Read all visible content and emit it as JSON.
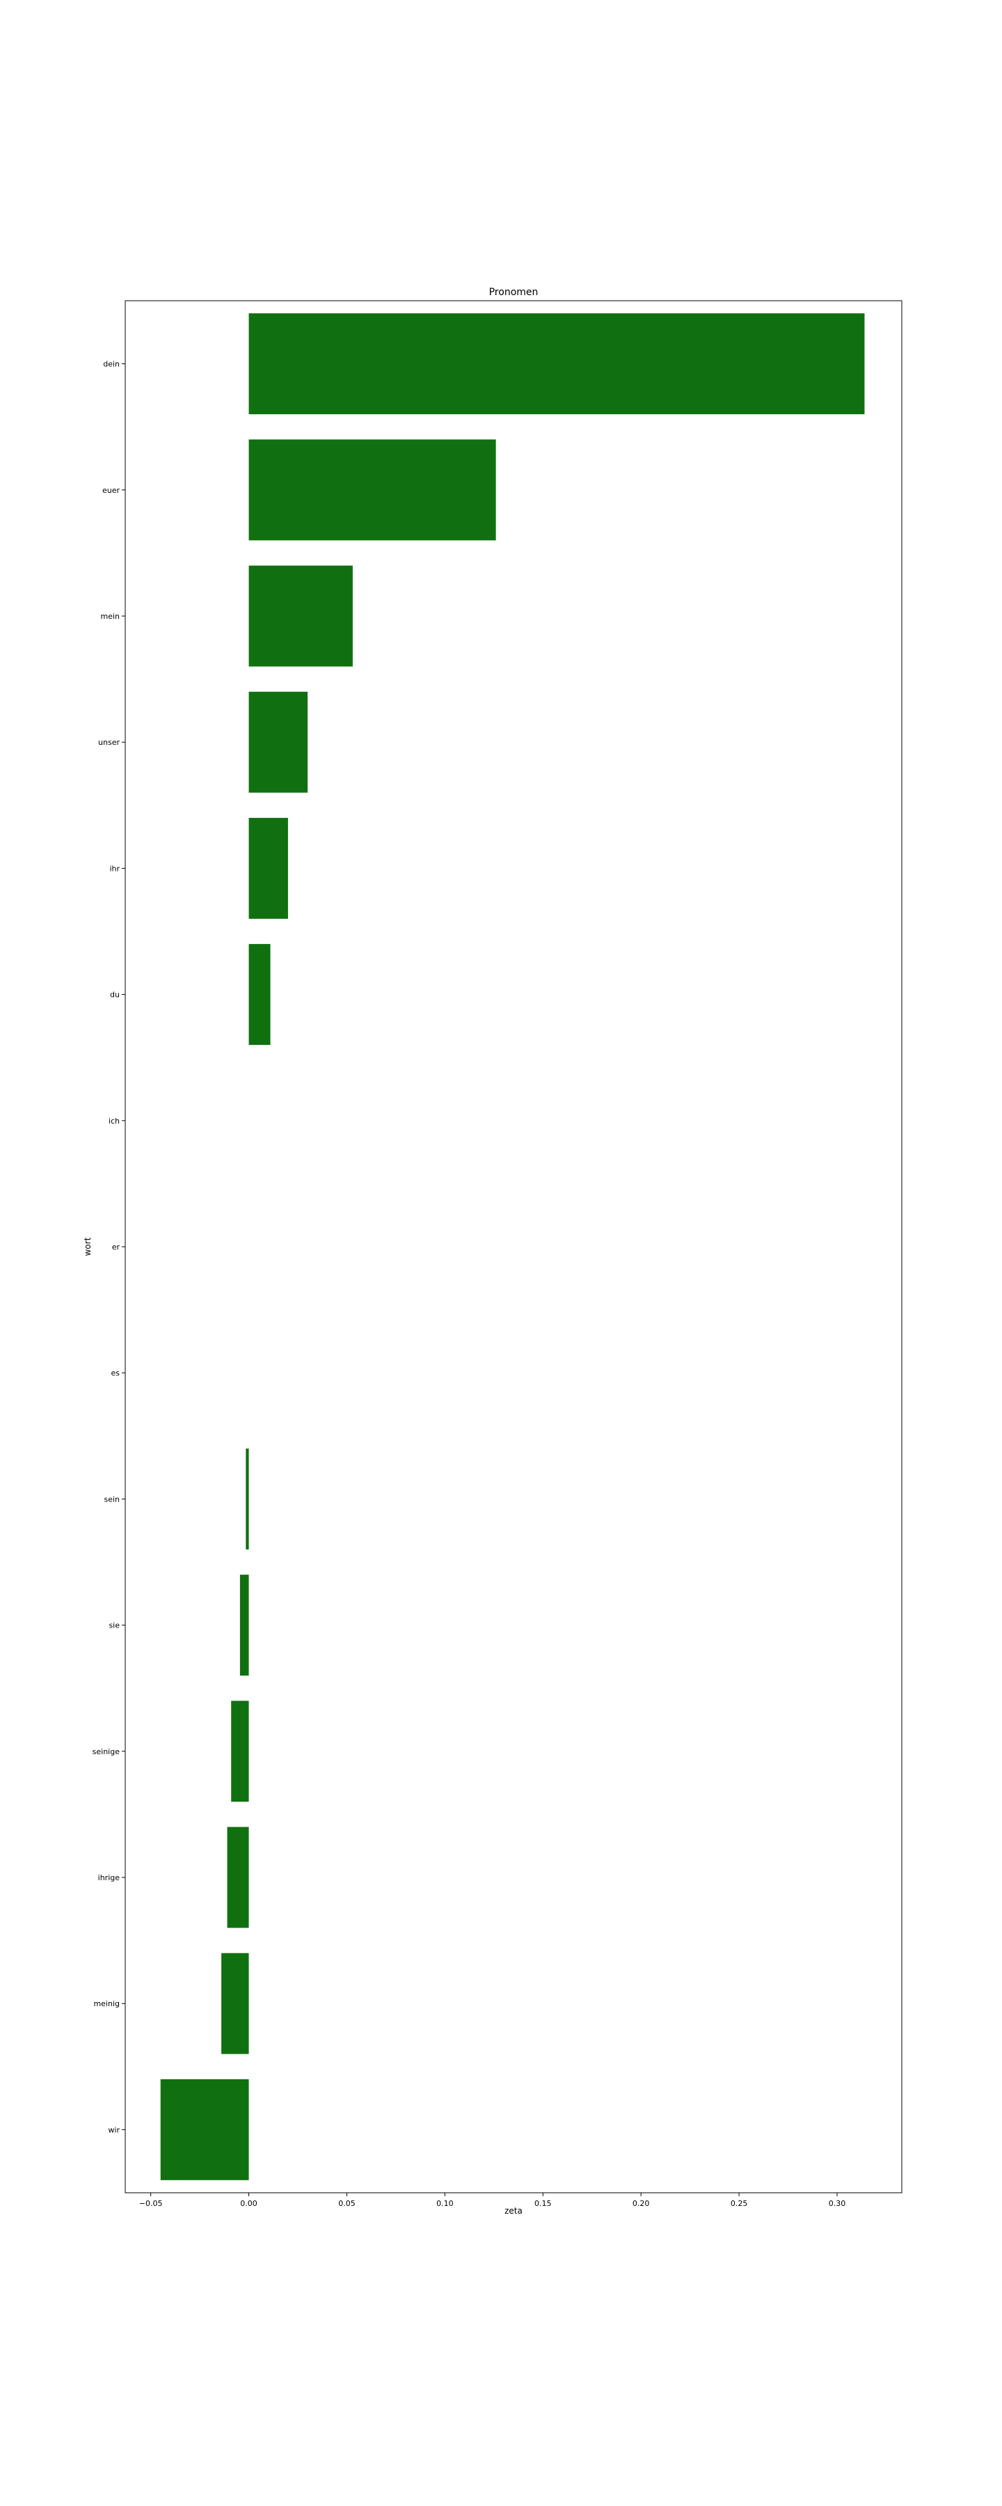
{
  "chart_data": {
    "type": "bar",
    "orientation": "horizontal",
    "title": "Pronomen",
    "xlabel": "zeta",
    "ylabel": "wort",
    "categories": [
      "dein",
      "euer",
      "mein",
      "unser",
      "ihr",
      "du",
      "ich",
      "er",
      "es",
      "sein",
      "sie",
      "seinige",
      "ihrige",
      "meinig",
      "wir"
    ],
    "values": [
      0.314,
      0.126,
      0.053,
      0.03,
      0.02,
      0.011,
      0.0,
      0.0,
      0.0,
      -0.0015,
      -0.0045,
      -0.009,
      -0.011,
      -0.014,
      -0.045
    ],
    "xlim": [
      -0.063,
      0.333
    ],
    "xticks": [
      -0.05,
      0.0,
      0.05,
      0.1,
      0.15,
      0.2,
      0.25,
      0.3
    ],
    "xtick_labels": [
      "−0.05",
      "0.00",
      "0.05",
      "0.10",
      "0.15",
      "0.20",
      "0.25",
      "0.30"
    ],
    "grid": false,
    "bar_color": "#107010"
  }
}
